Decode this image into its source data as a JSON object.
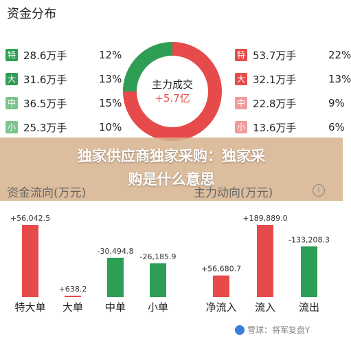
{
  "top": {
    "title": "资金分布",
    "center_label": "主力成交",
    "center_value": "+5.7亿",
    "left_rows": [
      {
        "badge": "特",
        "amount": "28.6万手",
        "pct": "12%",
        "color": "#2f9e55"
      },
      {
        "badge": "大",
        "amount": "31.6万手",
        "pct": "13%",
        "color": "#2f9e55"
      },
      {
        "badge": "中",
        "amount": "36.5万手",
        "pct": "15%",
        "color": "#7cc38f"
      },
      {
        "badge": "小",
        "amount": "25.3万手",
        "pct": "10%",
        "color": "#7cc38f"
      }
    ],
    "right_rows": [
      {
        "badge": "特",
        "amount": "53.7万手",
        "pct": "22%",
        "color": "#e74a4a"
      },
      {
        "badge": "大",
        "amount": "32.1万手",
        "pct": "13%",
        "color": "#e74a4a"
      },
      {
        "badge": "中",
        "amount": "22.8万手",
        "pct": "9%",
        "color": "#f19a9a"
      },
      {
        "badge": "小",
        "amount": "13.6万手",
        "pct": "6%",
        "color": "#f19a9a"
      }
    ]
  },
  "overlay": {
    "line1": "独家供应商独家采购：独家采",
    "line2": "购是什么意思"
  },
  "left_section": {
    "title": "资金流向(万元)"
  },
  "right_section": {
    "title": "主力动向(万元)",
    "info_icon": "info-icon"
  },
  "chart_data": [
    {
      "type": "bar",
      "categories": [
        "特大单",
        "大单",
        "中单",
        "小单"
      ],
      "values": [
        56042.5,
        638.2,
        -30494.8,
        -26185.9
      ],
      "labels": [
        "+56,042.5",
        "+638.2",
        "-30,494.8",
        "-26,185.9"
      ],
      "colors": [
        "#e74a4a",
        "#e74a4a",
        "#2f9e55",
        "#2f9e55"
      ]
    },
    {
      "type": "bar",
      "categories": [
        "净流入",
        "流入",
        "流出"
      ],
      "values": [
        56680.7,
        189889.0,
        -133208.3
      ],
      "labels": [
        "+56,680.7",
        "+189,889.0",
        "-133,208.3"
      ],
      "colors": [
        "#e74a4a",
        "#e74a4a",
        "#2f9e55"
      ]
    }
  ],
  "watermark": {
    "text": "雪球：将军复盘Y"
  }
}
